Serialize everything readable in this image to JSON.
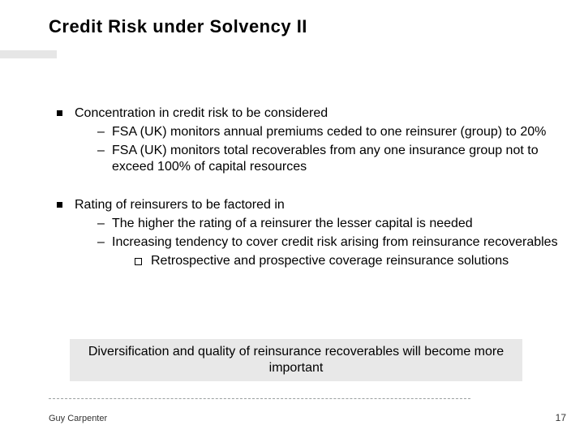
{
  "title": "Credit Risk under Solvency II",
  "bullets": [
    {
      "text": "Concentration in credit risk to be considered",
      "subs": [
        "FSA (UK) monitors annual premiums ceded to one reinsurer (group) to 20%",
        "FSA (UK) monitors total recoverables from any one insurance group not to exceed 100% of capital resources"
      ]
    },
    {
      "text": "Rating of reinsurers to be factored in",
      "subs": [
        "The higher the rating of a reinsurer the lesser capital is needed",
        "Increasing tendency to cover credit risk arising from reinsurance recoverables"
      ],
      "subsubs": [
        "Retrospective and prospective coverage reinsurance solutions"
      ]
    }
  ],
  "callout": "Diversification and quality of reinsurance recoverables will become more important",
  "footer": {
    "left": "Guy Carpenter",
    "page": "17"
  },
  "style": {
    "title_fontsize": 22,
    "body_fontsize": 16,
    "callout_bg": "#e8e8e8",
    "accent_bg": "#e6e6e6",
    "text_color": "#000000",
    "background_color": "#ffffff",
    "rule_color": "#9aa0a0"
  }
}
